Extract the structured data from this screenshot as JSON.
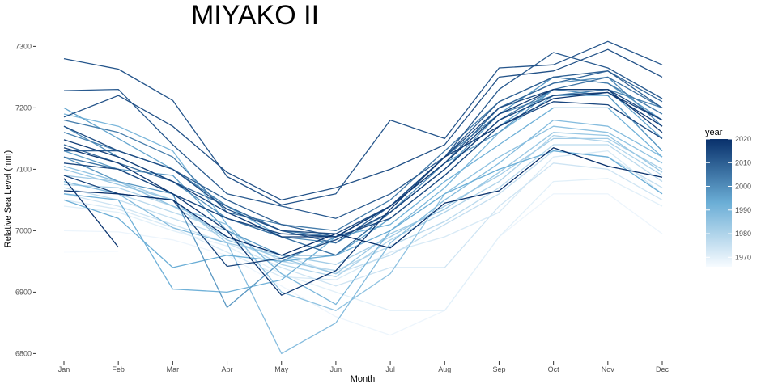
{
  "chart_data": {
    "type": "line",
    "title": "MIYAKO II",
    "xlabel": "Month",
    "ylabel": "Relative Sea Level (mm)",
    "categories": [
      "Jan",
      "Feb",
      "Mar",
      "Apr",
      "May",
      "Jun",
      "Jul",
      "Aug",
      "Sep",
      "Oct",
      "Nov",
      "Dec"
    ],
    "ylim": [
      6790,
      7315
    ],
    "yticks": [
      6800,
      6900,
      7000,
      7100,
      7200,
      7300
    ],
    "grid": false,
    "legend": {
      "title": "year",
      "position": "right",
      "range": [
        1966,
        2020
      ],
      "ticks": [
        1970,
        1980,
        1990,
        2000,
        2010,
        2020
      ],
      "color_low": "#f7fbff",
      "color_high": "#08306b"
    },
    "series": [
      {
        "name": "1966",
        "values": [
          6965,
          6966,
          null,
          null,
          null,
          null,
          null,
          null,
          null,
          null,
          null,
          null
        ]
      },
      {
        "name": "1968",
        "values": [
          7000,
          6998,
          6985,
          6960,
          6910,
          6860,
          6830,
          6870,
          6990,
          7060,
          7060,
          6995
        ]
      },
      {
        "name": "1970",
        "values": [
          7040,
          7030,
          7000,
          6975,
          6930,
          6900,
          6870,
          6870,
          6990,
          7080,
          7085,
          7040
        ]
      },
      {
        "name": "1972",
        "values": [
          7050,
          7035,
          7005,
          6965,
          6925,
          6920,
          6965,
          6990,
          7030,
          7120,
          7130,
          7060
        ]
      },
      {
        "name": "1974",
        "values": [
          7060,
          7040,
          7010,
          6980,
          6940,
          6910,
          6940,
          6940,
          7040,
          7110,
          7100,
          7050
        ]
      },
      {
        "name": "1976",
        "values": [
          7070,
          7050,
          7020,
          6990,
          6960,
          6930,
          6960,
          7010,
          7060,
          7130,
          7120,
          7070
        ]
      },
      {
        "name": "1978",
        "values": [
          7080,
          7060,
          7030,
          7000,
          6950,
          6935,
          6975,
          7015,
          7070,
          7140,
          7140,
          7080
        ]
      },
      {
        "name": "1980",
        "values": [
          7075,
          7070,
          7040,
          6990,
          6945,
          6925,
          6985,
          7030,
          7080,
          7155,
          7145,
          7090
        ]
      },
      {
        "name": "1982",
        "values": [
          7090,
          7080,
          7050,
          6980,
          6960,
          6945,
          6990,
          7040,
          7090,
          7150,
          7150,
          7100
        ]
      },
      {
        "name": "1984",
        "values": [
          7100,
          7075,
          7050,
          6985,
          6955,
          6930,
          6995,
          7035,
          7095,
          7160,
          7155,
          7095
        ]
      },
      {
        "name": "1986",
        "values": [
          7105,
          7080,
          7040,
          7010,
          6900,
          6870,
          6930,
          7060,
          7120,
          7170,
          7160,
          7110
        ]
      },
      {
        "name": "1988",
        "values": [
          7080,
          7060,
          7005,
          6980,
          6800,
          6850,
          6980,
          7050,
          7110,
          7180,
          7170,
          7120
        ]
      },
      {
        "name": "1990",
        "values": [
          7190,
          7170,
          7130,
          7010,
          6930,
          6880,
          7000,
          7070,
          7160,
          7220,
          7220,
          7130
        ]
      },
      {
        "name": "1992",
        "values": [
          7060,
          7050,
          6905,
          6900,
          6920,
          6990,
          7010,
          7080,
          7140,
          7200,
          7200,
          7120
        ]
      },
      {
        "name": "1993",
        "values": [
          7050,
          7020,
          6940,
          6960,
          6950,
          6960,
          7000,
          7060,
          7100,
          7130,
          7120,
          7060
        ]
      },
      {
        "name": "1995",
        "values": [
          7200,
          7150,
          7100,
          7040,
          6990,
          6960,
          7020,
          7090,
          7170,
          7230,
          7230,
          7150
        ]
      },
      {
        "name": "1997",
        "values": [
          7130,
          7100,
          7090,
          7000,
          6960,
          6960,
          7030,
          7100,
          7190,
          7250,
          7240,
          7180
        ]
      },
      {
        "name": "1998",
        "values": [
          7120,
          7080,
          7060,
          6875,
          6950,
          6990,
          7040,
          7110,
          7160,
          7230,
          7220,
          7130
        ]
      },
      {
        "name": "2000",
        "values": [
          7170,
          7120,
          7080,
          7020,
          6990,
          6980,
          7030,
          7110,
          7200,
          7240,
          7250,
          7170
        ]
      },
      {
        "name": "2002",
        "values": [
          7160,
          7130,
          7100,
          7040,
          7000,
          6990,
          7040,
          7120,
          7190,
          7220,
          7230,
          7200
        ]
      },
      {
        "name": "2004",
        "values": [
          7180,
          7160,
          7120,
          7030,
          7010,
          7000,
          7050,
          7130,
          7210,
          7250,
          7240,
          7190
        ]
      },
      {
        "name": "2006",
        "values": [
          7120,
          7100,
          7060,
          7020,
          6990,
          6960,
          7030,
          7100,
          7180,
          7230,
          7250,
          7200
        ]
      },
      {
        "name": "2008",
        "values": [
          7140,
          7110,
          7080,
          7040,
          7000,
          6980,
          7040,
          7110,
          7200,
          7240,
          7260,
          7210
        ]
      },
      {
        "name": "2010",
        "values": [
          7130,
          7130,
          7100,
          7050,
          7010,
          6990,
          7040,
          7120,
          7210,
          7250,
          7260,
          7200
        ]
      },
      {
        "name": "2011",
        "values": [
          7228,
          7230,
          7140,
          7060,
          7040,
          7020,
          7060,
          7120,
          7230,
          7290,
          7265,
          7215
        ]
      },
      {
        "name": "2012",
        "values": [
          7280,
          7263,
          7212,
          7088,
          7042,
          7060,
          7180,
          7150,
          7265,
          7270,
          7308,
          7270
        ]
      },
      {
        "name": "2013",
        "values": [
          7185,
          7220,
          7170,
          7095,
          7050,
          7070,
          7100,
          7140,
          7250,
          7260,
          7295,
          7250
        ]
      },
      {
        "name": "2014",
        "values": [
          7170,
          7130,
          7100,
          7035,
          7000,
          6995,
          7040,
          7120,
          7200,
          7230,
          7230,
          7180
        ]
      },
      {
        "name": "2015",
        "values": [
          7110,
          7100,
          7060,
          7020,
          6995,
          6990,
          7020,
          7090,
          7170,
          7210,
          7205,
          7150
        ]
      },
      {
        "name": "2016",
        "values": [
          7090,
          7060,
          7050,
          6942,
          6955,
          6985,
          7030,
          7100,
          7180,
          7220,
          7225,
          7180
        ]
      },
      {
        "name": "2017",
        "values": [
          7148,
          7120,
          7080,
          7030,
          6990,
          6990,
          7040,
          7110,
          7190,
          7230,
          7230,
          7160
        ]
      },
      {
        "name": "2018",
        "values": [
          7135,
          7110,
          7060,
          7000,
          6895,
          6935,
          7035,
          7120,
          7170,
          7215,
          7225,
          7170
        ]
      },
      {
        "name": "2019",
        "values": [
          7085,
          6973,
          null,
          null,
          null,
          null,
          null,
          null,
          null,
          null,
          null,
          null
        ]
      },
      {
        "name": "2020",
        "values": [
          7065,
          7060,
          7050,
          6990,
          6960,
          6995,
          6972,
          7045,
          7065,
          7135,
          7105,
          7087
        ]
      }
    ]
  }
}
